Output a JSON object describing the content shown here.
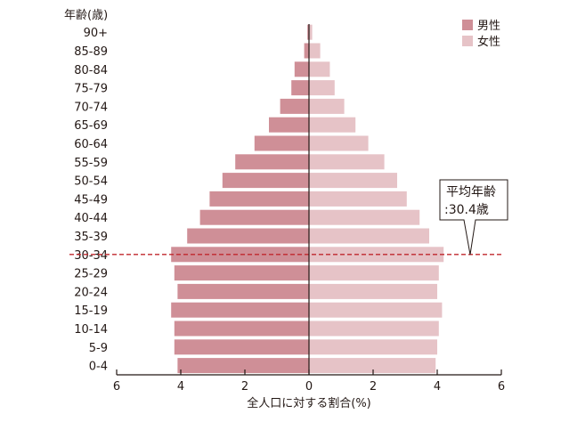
{
  "chart_data": {
    "type": "bar",
    "subtype": "population-pyramid",
    "orientation": "horizontal",
    "y_title": "年齢(歳)",
    "xlabel": "全人口に対する割合(%)",
    "xlim": [
      -6,
      6
    ],
    "x_ticks": [
      -6,
      -4,
      -2,
      0,
      2,
      4,
      6
    ],
    "x_tick_labels": [
      "6",
      "4",
      "2",
      "0",
      "2",
      "4",
      "6"
    ],
    "categories": [
      "0-4",
      "5-9",
      "10-14",
      "15-19",
      "20-24",
      "25-29",
      "30-34",
      "35-39",
      "40-44",
      "45-49",
      "50-54",
      "55-59",
      "60-64",
      "65-69",
      "70-74",
      "75-79",
      "80-84",
      "85-89",
      "90+"
    ],
    "series": [
      {
        "name": "男性",
        "color": "#cf8f97",
        "values": [
          4.1,
          4.2,
          4.2,
          4.3,
          4.1,
          4.2,
          4.3,
          3.8,
          3.4,
          3.1,
          2.7,
          2.3,
          1.7,
          1.25,
          0.9,
          0.55,
          0.45,
          0.15,
          0.05
        ]
      },
      {
        "name": "女性",
        "color": "#e6c3c7",
        "values": [
          3.95,
          4.0,
          4.05,
          4.15,
          4.0,
          4.05,
          4.2,
          3.75,
          3.45,
          3.05,
          2.75,
          2.35,
          1.85,
          1.45,
          1.1,
          0.8,
          0.65,
          0.35,
          0.1
        ]
      }
    ],
    "legend": {
      "position": "top-right"
    },
    "annotation": {
      "line1": "平均年齢",
      "line2": ":30.4歳",
      "at_category": "30-34",
      "line_style": "dashed",
      "line_color": "#c0272d"
    },
    "grid": false
  }
}
